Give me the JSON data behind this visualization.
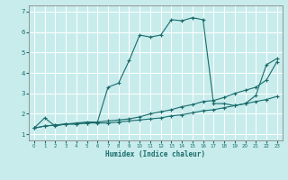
{
  "title": "",
  "xlabel": "Humidex (Indice chaleur)",
  "ylabel": "",
  "bg_color": "#c8ecec",
  "grid_color": "#ffffff",
  "line_color": "#1a6b6b",
  "xlim": [
    -0.5,
    23.5
  ],
  "ylim": [
    0.7,
    7.3
  ],
  "yticks": [
    1,
    2,
    3,
    4,
    5,
    6,
    7
  ],
  "xticks": [
    0,
    1,
    2,
    3,
    4,
    5,
    6,
    7,
    8,
    9,
    10,
    11,
    12,
    13,
    14,
    15,
    16,
    17,
    18,
    19,
    20,
    21,
    22,
    23
  ],
  "series1_x": [
    0,
    1,
    2,
    3,
    4,
    5,
    6,
    7,
    8,
    9,
    10,
    11,
    12,
    13,
    14,
    15,
    16,
    17,
    18,
    19,
    20,
    21,
    22,
    23
  ],
  "series1_y": [
    1.3,
    1.8,
    1.4,
    1.5,
    1.55,
    1.6,
    1.6,
    3.3,
    3.5,
    4.6,
    5.85,
    5.75,
    5.85,
    6.6,
    6.55,
    6.7,
    6.6,
    2.5,
    2.5,
    2.4,
    2.5,
    2.9,
    4.4,
    4.7
  ],
  "series2_x": [
    0,
    1,
    2,
    3,
    4,
    5,
    6,
    7,
    8,
    9,
    10,
    11,
    12,
    13,
    14,
    15,
    16,
    17,
    18,
    19,
    20,
    21,
    22,
    23
  ],
  "series2_y": [
    1.3,
    1.4,
    1.45,
    1.5,
    1.5,
    1.55,
    1.6,
    1.65,
    1.7,
    1.75,
    1.85,
    2.0,
    2.1,
    2.2,
    2.35,
    2.45,
    2.6,
    2.65,
    2.8,
    3.0,
    3.15,
    3.3,
    3.65,
    4.55
  ],
  "series3_x": [
    0,
    1,
    2,
    3,
    4,
    5,
    6,
    7,
    8,
    9,
    10,
    11,
    12,
    13,
    14,
    15,
    16,
    17,
    18,
    19,
    20,
    21,
    22,
    23
  ],
  "series3_y": [
    1.3,
    1.4,
    1.45,
    1.5,
    1.5,
    1.55,
    1.55,
    1.55,
    1.6,
    1.65,
    1.7,
    1.75,
    1.8,
    1.9,
    1.95,
    2.05,
    2.15,
    2.2,
    2.3,
    2.4,
    2.5,
    2.6,
    2.7,
    2.85
  ]
}
